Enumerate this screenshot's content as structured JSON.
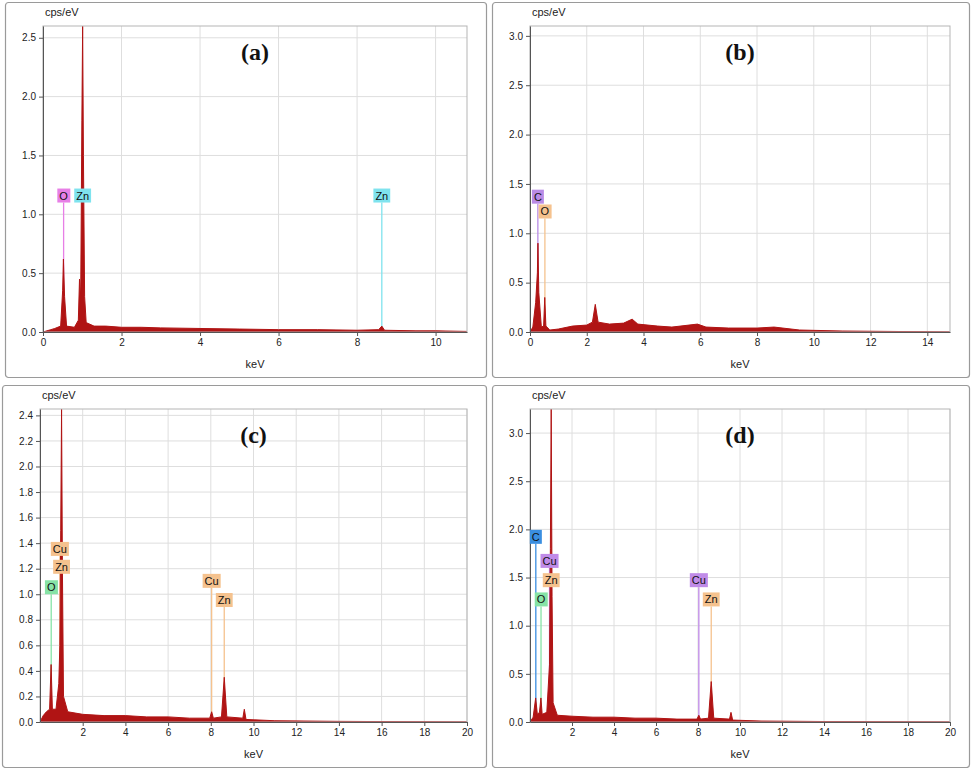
{
  "chart_data": [
    {
      "type": "area",
      "title": "(a)",
      "x_label": "keV",
      "y_label": "cps/eV",
      "color": "#b01414",
      "grid": true,
      "xlim": [
        0,
        10.8
      ],
      "xticks": [
        0,
        2,
        4,
        6,
        8,
        10
      ],
      "ylim": [
        0,
        2.6
      ],
      "yticks": [
        {
          "value": 0,
          "label": "0.0"
        },
        0.5,
        {
          "value": 1,
          "label": "1.0"
        },
        1.5,
        {
          "value": 2,
          "label": "2.0"
        },
        2.5
      ],
      "x": [
        0,
        0.1,
        0.2,
        0.3,
        0.45,
        0.5,
        0.52,
        0.55,
        0.6,
        0.8,
        0.9,
        0.93,
        0.96,
        0.99,
        1.01,
        1.03,
        1.06,
        1.1,
        1.3,
        1.6,
        2,
        2.5,
        3,
        4,
        5,
        6,
        7,
        8,
        8.55,
        8.63,
        8.7,
        9.5,
        10,
        10.8
      ],
      "values": [
        0,
        0.01,
        0.02,
        0.03,
        0.05,
        0.35,
        0.62,
        0.3,
        0.05,
        0.04,
        0.1,
        0.45,
        0.3,
        1.8,
        2.6,
        1.5,
        0.3,
        0.08,
        0.05,
        0.05,
        0.04,
        0.04,
        0.035,
        0.03,
        0.025,
        0.02,
        0.02,
        0.015,
        0.02,
        0.05,
        0.015,
        0.01,
        0.01,
        0.005
      ],
      "annotations": [
        {
          "label": "O",
          "x": 0.525,
          "y": 1.1,
          "color": "#e77fe6"
        },
        {
          "label": "Zn",
          "x": 1.01,
          "y": 1.1,
          "color": "#7fe3ee"
        },
        {
          "label": "Zn",
          "x": 8.63,
          "y": 1.1,
          "color": "#7fe3ee"
        }
      ]
    },
    {
      "type": "area",
      "title": "(b)",
      "x_label": "keV",
      "y_label": "cps/eV",
      "color": "#b01414",
      "grid": true,
      "xlim": [
        0,
        14.8
      ],
      "xticks": [
        0,
        2,
        4,
        6,
        8,
        10,
        12,
        14
      ],
      "ylim": [
        0,
        3.1
      ],
      "yticks": [
        {
          "value": 0,
          "label": "0.0"
        },
        0.5,
        {
          "value": 1,
          "label": "1.0"
        },
        1.5,
        {
          "value": 2,
          "label": "2.0"
        },
        2.5,
        {
          "value": 3,
          "label": "3.0"
        }
      ],
      "x": [
        0,
        0.1,
        0.2,
        0.26,
        0.28,
        0.31,
        0.4,
        0.48,
        0.52,
        0.56,
        0.7,
        1,
        1.5,
        2,
        2.2,
        2.3,
        2.4,
        2.8,
        3.3,
        3.6,
        3.8,
        4.5,
        5,
        5.9,
        6.2,
        7,
        8,
        8.6,
        9.5,
        11,
        13,
        14.8
      ],
      "values": [
        0,
        0.05,
        0.3,
        0.6,
        0.9,
        0.4,
        0.05,
        0.06,
        0.35,
        0.06,
        0.02,
        0.03,
        0.06,
        0.07,
        0.1,
        0.28,
        0.1,
        0.08,
        0.09,
        0.13,
        0.08,
        0.06,
        0.05,
        0.08,
        0.05,
        0.04,
        0.04,
        0.05,
        0.02,
        0.01,
        0.005,
        0
      ],
      "annotations": [
        {
          "label": "C",
          "x": 0.277,
          "y": 1.3,
          "color": "#b98be6"
        },
        {
          "label": "O",
          "x": 0.525,
          "y": 1.15,
          "color": "#f5c28e"
        }
      ]
    },
    {
      "type": "area",
      "title": "(c)",
      "x_label": "keV",
      "y_label": "cps/eV",
      "color": "#b01414",
      "grid": true,
      "xlim": [
        0,
        20
      ],
      "xticks": [
        2,
        4,
        6,
        8,
        10,
        12,
        14,
        16,
        18,
        20
      ],
      "ylim": [
        0,
        2.45
      ],
      "yticks": [
        {
          "value": 0,
          "label": "0.0"
        },
        0.2,
        0.4,
        0.6,
        0.8,
        {
          "value": 1,
          "label": "1.0"
        },
        1.2,
        1.4,
        1.6,
        1.8,
        {
          "value": 2,
          "label": "2.0"
        },
        2.2,
        2.4
      ],
      "x": [
        0,
        0.15,
        0.3,
        0.45,
        0.52,
        0.58,
        0.75,
        0.88,
        0.93,
        0.97,
        1.01,
        1.05,
        1.1,
        1.3,
        2,
        3,
        4,
        5,
        6,
        7,
        7.95,
        8.04,
        8.12,
        8.5,
        8.63,
        8.75,
        9.5,
        9.57,
        9.65,
        11,
        14,
        20
      ],
      "values": [
        0,
        0.05,
        0.08,
        0.1,
        0.45,
        0.1,
        0.1,
        0.3,
        0.6,
        1.5,
        2.45,
        1.2,
        0.2,
        0.08,
        0.06,
        0.05,
        0.05,
        0.04,
        0.04,
        0.03,
        0.03,
        0.08,
        0.03,
        0.04,
        0.35,
        0.04,
        0.03,
        0.1,
        0.02,
        0.01,
        0.005,
        0
      ],
      "annotations": [
        {
          "label": "O",
          "x": 0.525,
          "y": 1.0,
          "color": "#86e3a6"
        },
        {
          "label": "Cu",
          "x": 0.93,
          "y": 1.3,
          "color": "#f5c28e"
        },
        {
          "label": "Zn",
          "x": 1.01,
          "y": 1.16,
          "color": "#f5c28e"
        },
        {
          "label": "Cu",
          "x": 8.04,
          "y": 1.05,
          "color": "#f5c28e"
        },
        {
          "label": "Zn",
          "x": 8.63,
          "y": 0.9,
          "color": "#f5c28e"
        }
      ]
    },
    {
      "type": "area",
      "title": "(d)",
      "x_label": "keV",
      "y_label": "cps/eV",
      "color": "#b01414",
      "grid": true,
      "xlim": [
        0,
        20
      ],
      "xticks": [
        2,
        4,
        6,
        8,
        10,
        12,
        14,
        16,
        18,
        20
      ],
      "ylim": [
        0,
        3.25
      ],
      "yticks": [
        {
          "value": 0,
          "label": "0.0"
        },
        0.5,
        {
          "value": 1,
          "label": "1.0"
        },
        1.5,
        {
          "value": 2,
          "label": "2.0"
        },
        2.5,
        {
          "value": 3,
          "label": "3.0"
        }
      ],
      "x": [
        0,
        0.15,
        0.27,
        0.35,
        0.45,
        0.52,
        0.58,
        0.8,
        0.93,
        0.97,
        1.01,
        1.05,
        1.1,
        1.3,
        2,
        3,
        4,
        5,
        6,
        7,
        7.95,
        8.04,
        8.12,
        8.5,
        8.63,
        8.75,
        9.5,
        9.57,
        9.65,
        11,
        14,
        20
      ],
      "values": [
        0,
        0.05,
        0.25,
        0.08,
        0.1,
        0.25,
        0.08,
        0.1,
        0.6,
        1.8,
        3.25,
        1.3,
        0.2,
        0.07,
        0.06,
        0.05,
        0.05,
        0.04,
        0.04,
        0.03,
        0.03,
        0.07,
        0.03,
        0.04,
        0.42,
        0.04,
        0.03,
        0.1,
        0.02,
        0.01,
        0.005,
        0
      ],
      "annotations": [
        {
          "label": "C",
          "x": 0.277,
          "y": 1.85,
          "color": "#3a8ee0"
        },
        {
          "label": "O",
          "x": 0.525,
          "y": 1.2,
          "color": "#86e3a6"
        },
        {
          "label": "Cu",
          "x": 0.93,
          "y": 1.6,
          "color": "#c08be8"
        },
        {
          "label": "Zn",
          "x": 1.01,
          "y": 1.4,
          "color": "#f5c28e"
        },
        {
          "label": "Cu",
          "x": 8.04,
          "y": 1.4,
          "color": "#c08be8"
        },
        {
          "label": "Zn",
          "x": 8.63,
          "y": 1.2,
          "color": "#f5c28e"
        }
      ]
    }
  ]
}
